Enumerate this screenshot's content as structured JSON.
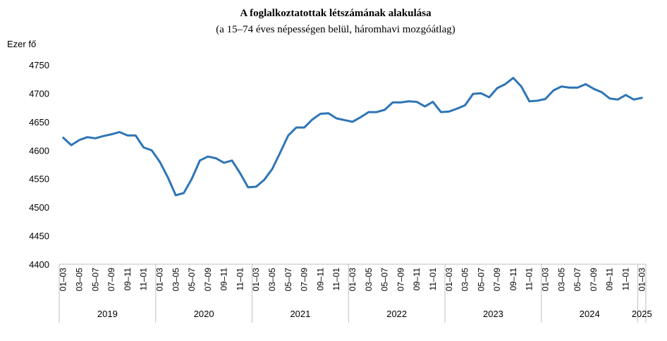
{
  "chart_data": {
    "type": "line",
    "title": "A foglalkoztatottak létszámának alakulása",
    "subtitle": "(a 15–74 éves népességen belül, háromhavi mozgóátlag)",
    "ylabel": "Ezer fő",
    "ylim": [
      4400,
      4750
    ],
    "yticks": [
      "4400",
      "4450",
      "4500",
      "4550",
      "4600",
      "4650",
      "4700",
      "4750"
    ],
    "grid": false,
    "line_color": "#2E75B6",
    "years": [
      "2019",
      "2020",
      "2021",
      "2022",
      "2023",
      "2024",
      "2025"
    ],
    "months_per_year": [
      12,
      12,
      12,
      12,
      12,
      12,
      1
    ],
    "x": [
      "01–03",
      "02–04",
      "03–05",
      "04–06",
      "05–07",
      "06–08",
      "07–09",
      "08–10",
      "09–11",
      "10–12",
      "11–01",
      "12–02",
      "01–03",
      "02–04",
      "03–05",
      "04–06",
      "05–07",
      "06–08",
      "07–09",
      "08–10",
      "09–11",
      "10–12",
      "11–01",
      "12–02",
      "01–03",
      "02–04",
      "03–05",
      "04–06",
      "05–07",
      "06–08",
      "07–09",
      "08–10",
      "09–11",
      "10–12",
      "11–01",
      "12–02",
      "01–03",
      "02–04",
      "03–05",
      "04–06",
      "05–07",
      "06–08",
      "07–09",
      "08–10",
      "09–11",
      "10–12",
      "11–01",
      "12–02",
      "01–03",
      "02–04",
      "03–05",
      "04–06",
      "05–07",
      "06–08",
      "07–09",
      "08–10",
      "09–11",
      "10–12",
      "11–01",
      "12–02",
      "01–03",
      "02–04",
      "03–05",
      "04–06",
      "05–07",
      "06–08",
      "07–09",
      "08–10",
      "09–11",
      "10–12",
      "11–01",
      "12–02",
      "01–03"
    ],
    "tick_labels": [
      "01–03",
      "",
      "03–05",
      "",
      "05–07",
      "",
      "07–09",
      "",
      "09–11",
      "",
      "11–01",
      "",
      "01–03",
      "",
      "03–05",
      "",
      "05–07",
      "",
      "07–09",
      "",
      "09–11",
      "",
      "11–01",
      "",
      "01–03",
      "",
      "03–05",
      "",
      "05–07",
      "",
      "07–09",
      "",
      "09–11",
      "",
      "11–01",
      "",
      "01–03",
      "",
      "03–05",
      "",
      "05–07",
      "",
      "07–09",
      "",
      "09–11",
      "",
      "11–01",
      "",
      "01–03",
      "",
      "03–05",
      "",
      "05–07",
      "",
      "07–09",
      "",
      "09–11",
      "",
      "11–01",
      "",
      "01–03",
      "",
      "03–05",
      "",
      "05–07",
      "",
      "07–09",
      "",
      "09–11",
      "",
      "11–01",
      "",
      "01–03"
    ],
    "values": [
      4622,
      4609,
      4618,
      4623,
      4621,
      4625,
      4628,
      4632,
      4626,
      4626,
      4605,
      4600,
      4580,
      4553,
      4521,
      4525,
      4550,
      4582,
      4589,
      4586,
      4578,
      4582,
      4560,
      4535,
      4536,
      4548,
      4567,
      4596,
      4626,
      4640,
      4640,
      4654,
      4664,
      4665,
      4656,
      4653,
      4650,
      4658,
      4667,
      4667,
      4671,
      4684,
      4684,
      4686,
      4685,
      4677,
      4685,
      4667,
      4668,
      4673,
      4679,
      4699,
      4700,
      4693,
      4709,
      4716,
      4727,
      4712,
      4686,
      4687,
      4690,
      4705,
      4712,
      4710,
      4710,
      4716,
      4708,
      4702,
      4691,
      4689,
      4697,
      4689,
      4692
    ]
  }
}
